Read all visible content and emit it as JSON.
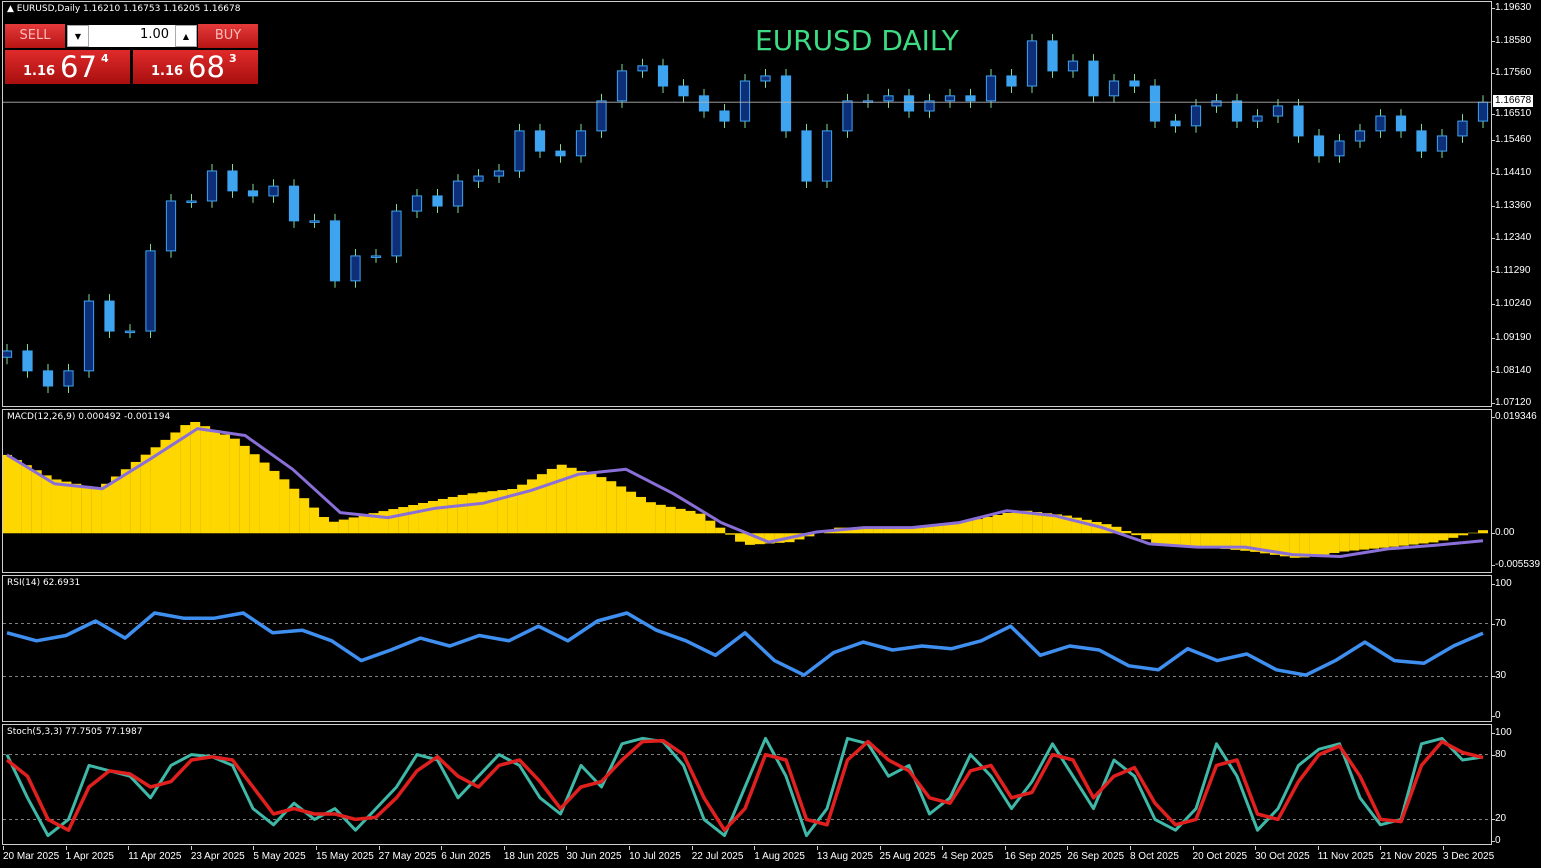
{
  "header": {
    "symbol_info": "▲ EURUSD,Daily  1.16210 1.16753 1.16205 1.16678",
    "chart_title": "EURUSD DAILY"
  },
  "trade_panel": {
    "sell_label": "SELL",
    "buy_label": "BUY",
    "lot": "1.00",
    "down_glyph": "▼",
    "up_glyph": "▲",
    "sell_price": {
      "prefix": "1.16",
      "big": "67",
      "sup": "4"
    },
    "buy_price": {
      "prefix": "1.16",
      "big": "68",
      "sup": "3"
    }
  },
  "colors": {
    "bull_body": "#0d2f7a",
    "bear_body": "#3fa4f0",
    "wick": "#7fdc8f",
    "macd_hist": "#ffd700",
    "macd_signal": "#8a6fd8",
    "rsi": "#3f8ff0",
    "stoch_main": "#3fb8a8",
    "stoch_signal": "#e0201e",
    "price_line": "#b0b0b0",
    "title": "#3ddc84",
    "trade_red": "#d42222"
  },
  "price_axis": {
    "ticks": [
      "1.19630",
      "1.18580",
      "1.17560",
      "1.16510",
      "1.15460",
      "1.14410",
      "1.13360",
      "1.12340",
      "1.11290",
      "1.10240",
      "1.09190",
      "1.08140",
      "1.07120"
    ],
    "current": "1.16678"
  },
  "macd_axis": {
    "ticks": [
      "0.019346",
      "0.00",
      "-0.005539"
    ]
  },
  "rsi_axis": {
    "ticks": [
      "100",
      "70",
      "30",
      "0"
    ]
  },
  "stoch_axis": {
    "ticks": [
      "100",
      "80",
      "20",
      "0"
    ]
  },
  "time_axis": [
    "20 Mar 2025",
    "1 Apr 2025",
    "11 Apr 2025",
    "23 Apr 2025",
    "5 May 2025",
    "15 May 2025",
    "27 May 2025",
    "6 Jun 2025",
    "18 Jun 2025",
    "30 Jun 2025",
    "10 Jul 2025",
    "22 Jul 2025",
    "1 Aug 2025",
    "13 Aug 2025",
    "25 Aug 2025",
    "4 Sep 2025",
    "16 Sep 2025",
    "26 Sep 2025",
    "8 Oct 2025",
    "20 Oct 2025",
    "30 Oct 2025",
    "11 Nov 2025",
    "21 Nov 2025",
    "3 Dec 2025"
  ],
  "chart_data": [
    {
      "type": "candlestick",
      "title": "EURUSD,Daily",
      "ylim": [
        1.0712,
        1.1963
      ],
      "last_ohlc": [
        1.1621,
        1.16753,
        1.16205,
        1.16678
      ],
      "closes": [
        1.088,
        1.0817,
        1.0769,
        1.0817,
        1.1038,
        1.0943,
        1.0943,
        1.1197,
        1.1355,
        1.1355,
        1.145,
        1.1387,
        1.1371,
        1.1402,
        1.1292,
        1.1292,
        1.1102,
        1.1181,
        1.1181,
        1.1323,
        1.1371,
        1.1339,
        1.1418,
        1.1434,
        1.145,
        1.1577,
        1.1513,
        1.1498,
        1.1577,
        1.1672,
        1.1767,
        1.1783,
        1.1719,
        1.1688,
        1.164,
        1.1608,
        1.1735,
        1.1751,
        1.1577,
        1.1418,
        1.1577,
        1.1672,
        1.1672,
        1.1688,
        1.164,
        1.1672,
        1.1688,
        1.1672,
        1.1751,
        1.1719,
        1.1862,
        1.1767,
        1.1798,
        1.1688,
        1.1735,
        1.1719,
        1.1608,
        1.1593,
        1.1656,
        1.1672,
        1.1608,
        1.1624,
        1.1656,
        1.1561,
        1.1498,
        1.1545,
        1.1577,
        1.1624,
        1.1577,
        1.1513,
        1.1561,
        1.1608,
        1.16678
      ]
    },
    {
      "type": "bar+line",
      "title": "MACD(12,26,9) 0.000492 -0.001194",
      "ylim": [
        -0.005539,
        0.019346
      ],
      "histogram": [
        0.0125,
        0.0087,
        0.0071,
        0.0125,
        0.018,
        0.0149,
        0.0087,
        0.0017,
        0.0033,
        0.0048,
        0.0063,
        0.0071,
        0.011,
        0.0087,
        0.0048,
        0.0033,
        -0.0019,
        -0.0014,
        0.0009,
        0.0009,
        0.0012,
        0.0022,
        0.0037,
        0.0028,
        0.0012,
        -0.0019,
        -0.0022,
        -0.0029,
        -0.004,
        -0.0029,
        -0.0022,
        -0.0014,
        0.000492
      ],
      "signal": [
        0.0125,
        0.0079,
        0.0071,
        0.0118,
        0.0167,
        0.0156,
        0.0102,
        0.0033,
        0.0025,
        0.004,
        0.0048,
        0.0068,
        0.0094,
        0.0102,
        0.0063,
        0.0017,
        -0.0014,
        0.0002,
        0.0009,
        0.0009,
        0.0017,
        0.0036,
        0.0028,
        0.0009,
        -0.0017,
        -0.0022,
        -0.0022,
        -0.0034,
        -0.0037,
        -0.0025,
        -0.0019,
        -0.001194
      ]
    },
    {
      "type": "line",
      "title": "RSI(14) 62.6931",
      "ylim": [
        0,
        100
      ],
      "levels": [
        30,
        70
      ],
      "values": [
        63,
        57,
        61,
        72,
        59,
        78,
        74,
        74,
        78,
        63,
        65,
        57,
        42,
        50,
        59,
        53,
        61,
        57,
        68,
        57,
        72,
        78,
        65,
        57,
        46,
        63,
        42,
        31,
        48,
        56,
        50,
        53,
        51,
        57,
        68,
        46,
        53,
        50,
        38,
        35,
        51,
        42,
        47,
        35,
        31,
        42,
        56,
        42,
        40,
        53,
        62.69
      ]
    },
    {
      "type": "line",
      "title": "Stoch(5,3,3) 77.7505 77.1987",
      "ylim": [
        0,
        100
      ],
      "levels": [
        20,
        80
      ],
      "main": [
        80,
        40,
        5,
        20,
        70,
        65,
        60,
        40,
        70,
        80,
        78,
        70,
        30,
        15,
        35,
        20,
        30,
        10,
        30,
        50,
        80,
        75,
        40,
        60,
        80,
        70,
        40,
        25,
        70,
        50,
        90,
        95,
        92,
        70,
        20,
        5,
        50,
        95,
        60,
        5,
        30,
        95,
        90,
        60,
        70,
        25,
        40,
        80,
        60,
        30,
        55,
        90,
        60,
        30,
        75,
        60,
        20,
        10,
        30,
        90,
        60,
        10,
        30,
        70,
        85,
        90,
        40,
        15,
        20,
        90,
        95,
        75,
        77.75
      ],
      "signal": [
        75,
        60,
        20,
        10,
        50,
        65,
        62,
        50,
        55,
        75,
        78,
        75,
        50,
        25,
        30,
        25,
        25,
        20,
        22,
        40,
        65,
        78,
        60,
        50,
        70,
        75,
        55,
        30,
        50,
        55,
        75,
        92,
        93,
        80,
        40,
        10,
        30,
        80,
        75,
        20,
        15,
        75,
        92,
        75,
        65,
        40,
        35,
        65,
        70,
        40,
        45,
        80,
        75,
        40,
        60,
        68,
        35,
        15,
        20,
        70,
        75,
        25,
        20,
        55,
        80,
        88,
        60,
        20,
        18,
        70,
        92,
        82,
        77.2
      ]
    }
  ]
}
